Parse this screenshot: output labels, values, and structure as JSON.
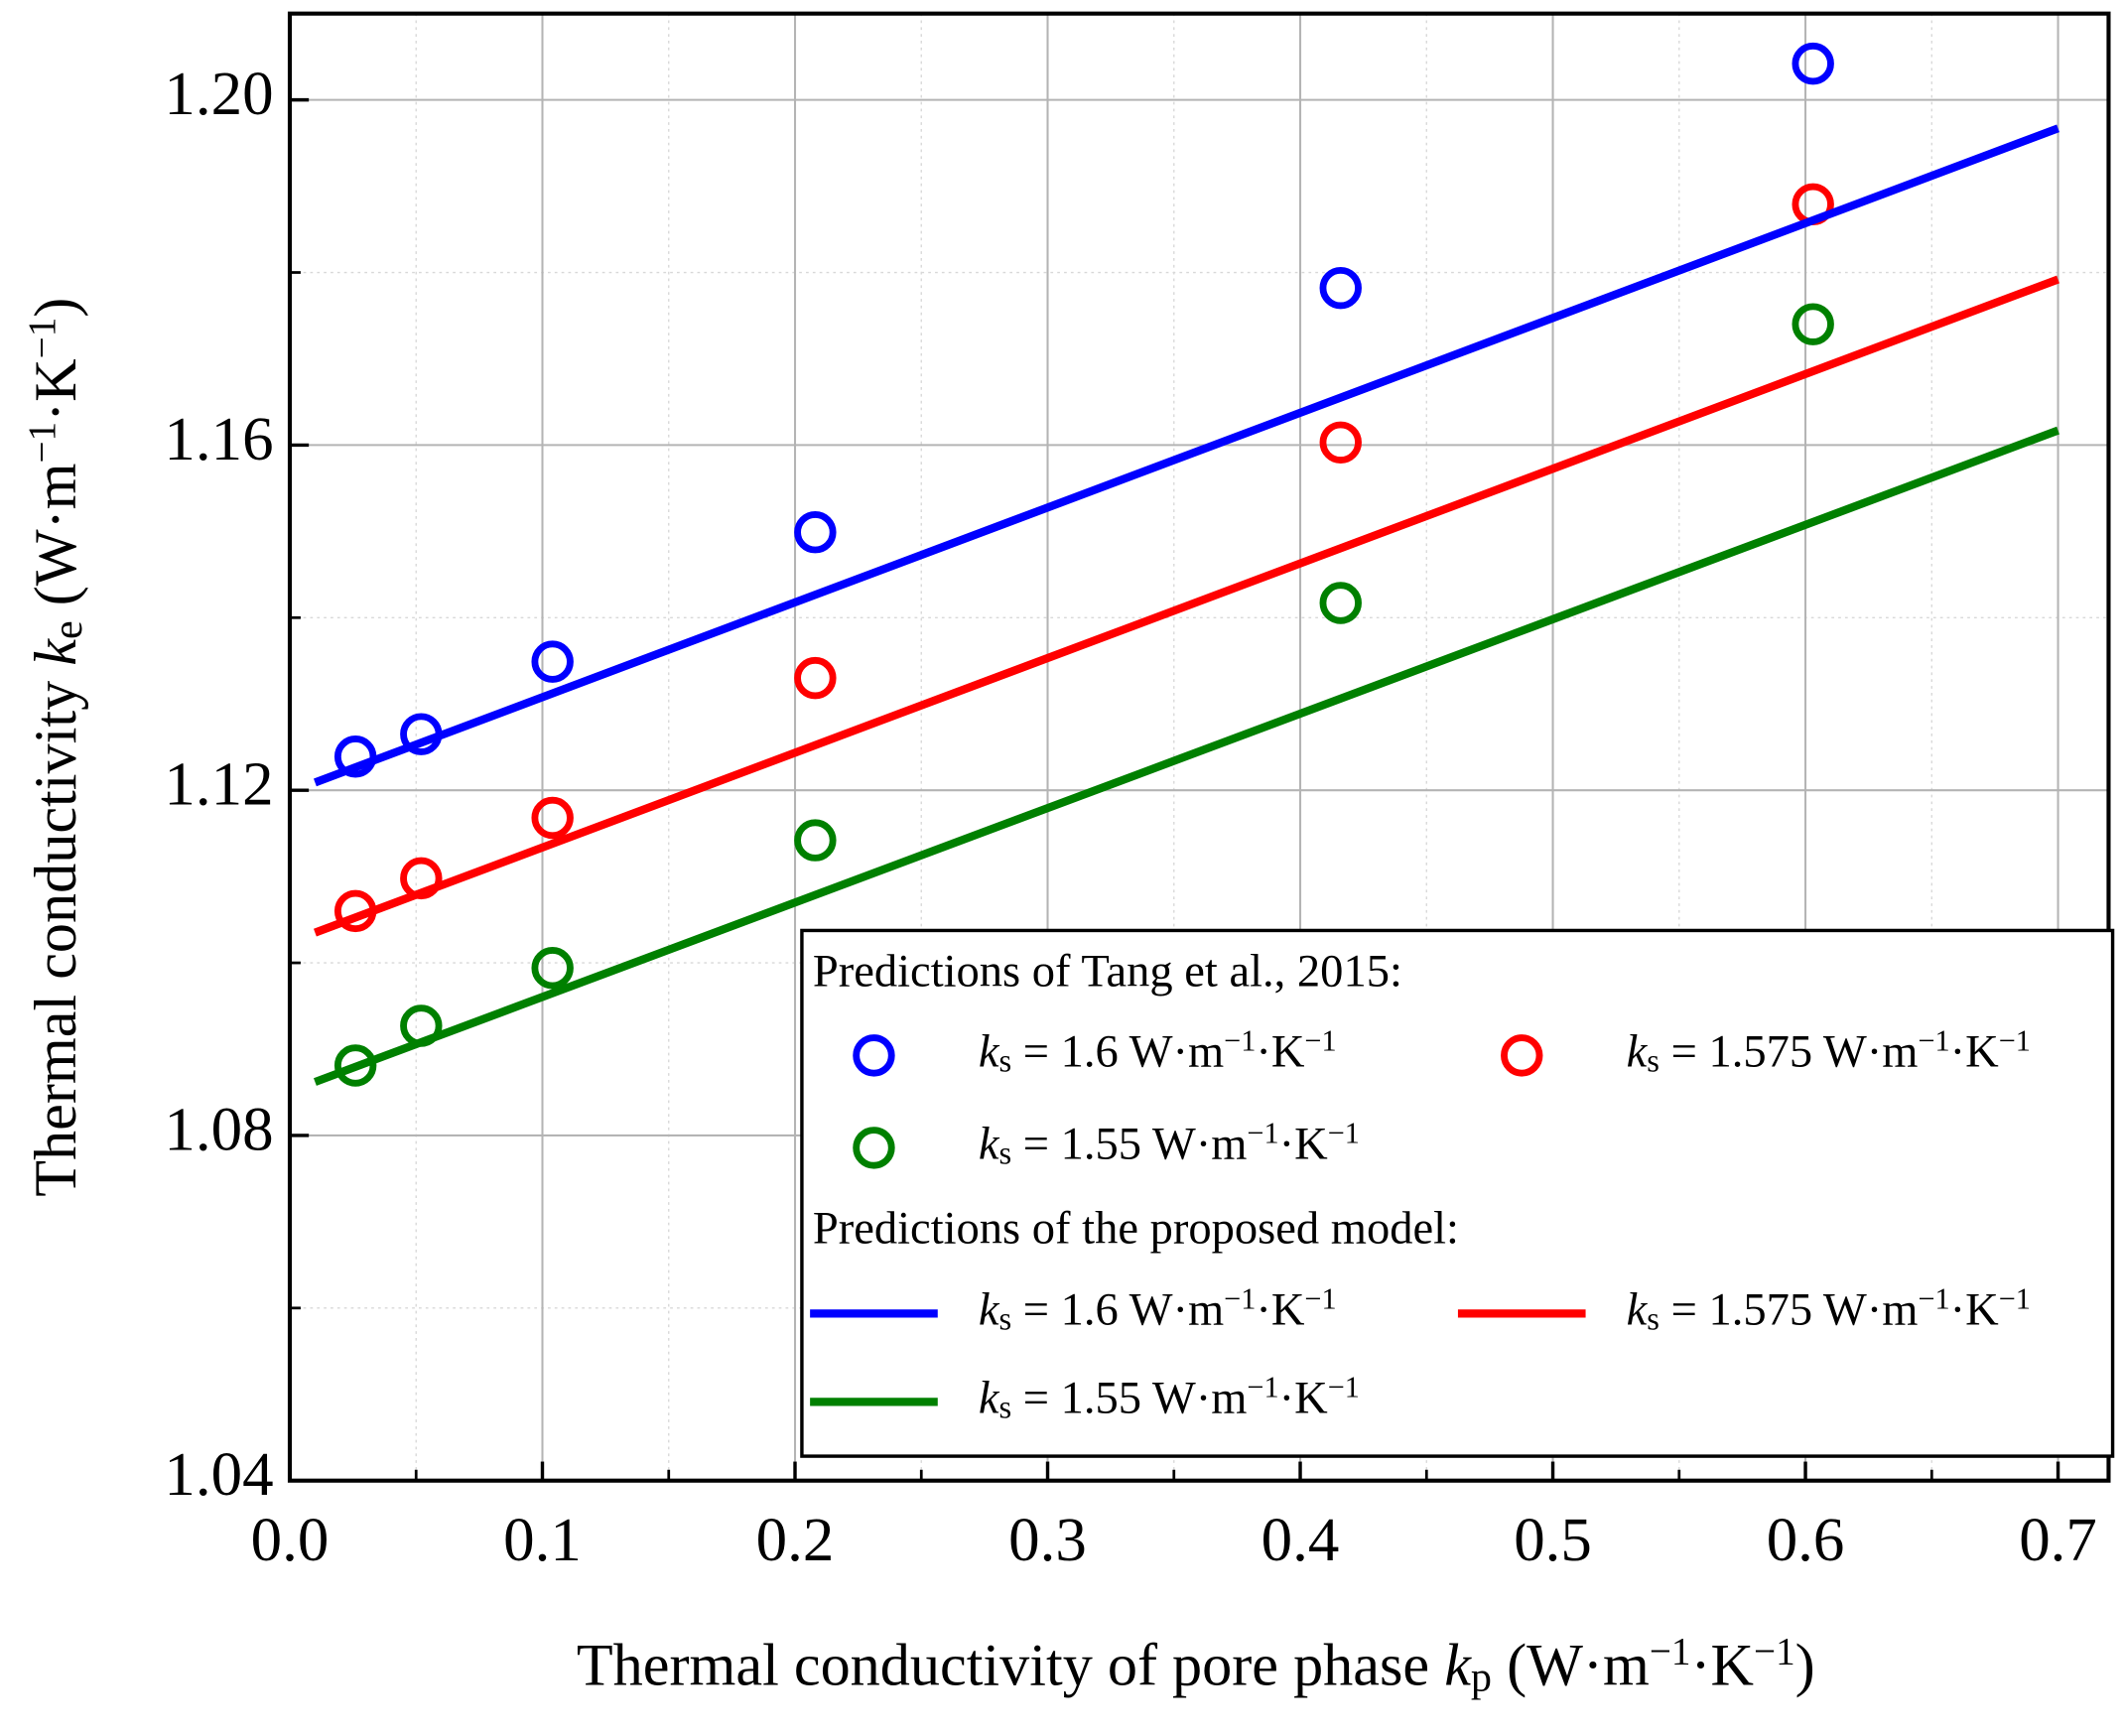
{
  "chart_data": {
    "type": "scatter_line",
    "x_label": "Thermal conductivity of pore phase kp (W·m−1·K−1)",
    "y_label": "Thermal conductivity ke (W·m−1·K−1)",
    "xlim": [
      0,
      0.72
    ],
    "ylim": [
      1.04,
      1.21
    ],
    "xticks": [
      {
        "value": 0,
        "label": "0.0"
      },
      0.1,
      0.2,
      0.3,
      0.4,
      0.5,
      0.6,
      0.7
    ],
    "yticks": [
      1.04,
      1.08,
      1.12,
      1.16,
      {
        "value": 1.2,
        "label": "1.20"
      }
    ],
    "xminor": [
      0.05,
      0.15,
      0.25,
      0.35,
      0.45,
      0.55,
      0.65
    ],
    "yminor": [
      1.06,
      1.1,
      1.14,
      1.18
    ],
    "grid": true,
    "legend": {
      "position": "lower right",
      "marker_title": "Predictions of Tang et al., 2015:",
      "line_title": "Predictions of the proposed model:"
    },
    "series": [
      {
        "name": "ks = 1.6 W·m−1·K−1",
        "color": "#0000ff",
        "style": "marker",
        "x": [
          0.026,
          0.052,
          0.104,
          0.208,
          0.416,
          0.603
        ],
        "values": [
          1.1239,
          1.1265,
          1.1349,
          1.1499,
          1.1782,
          1.2042
        ]
      },
      {
        "name": "ks = 1.575 W·m−1·K−1",
        "color": "#ff0000",
        "style": "marker",
        "x": [
          0.026,
          0.052,
          0.104,
          0.208,
          0.416,
          0.603
        ],
        "values": [
          1.106,
          1.1098,
          1.1168,
          1.133,
          1.1603,
          1.1879
        ]
      },
      {
        "name": "ks = 1.55 W·m−1·K−1",
        "color": "#008000",
        "style": "marker",
        "x": [
          0.026,
          0.052,
          0.104,
          0.208,
          0.416,
          0.603
        ],
        "values": [
          1.0881,
          1.0927,
          1.0994,
          1.1142,
          1.1417,
          1.174
        ]
      },
      {
        "name": "ks = 1.6 W·m−1·K−1",
        "color": "#0000ff",
        "style": "line",
        "x": [
          0.01,
          0.7
        ],
        "values": [
          1.1209,
          1.1967
        ]
      },
      {
        "name": "ks = 1.575 W·m−1·K−1",
        "color": "#ff0000",
        "style": "line",
        "x": [
          0.01,
          0.7
        ],
        "values": [
          1.1035,
          1.1792
        ]
      },
      {
        "name": "ks = 1.55 W·m−1·K−1",
        "color": "#008000",
        "style": "line",
        "x": [
          0.01,
          0.7
        ],
        "values": [
          1.0862,
          1.1617
        ]
      }
    ]
  }
}
